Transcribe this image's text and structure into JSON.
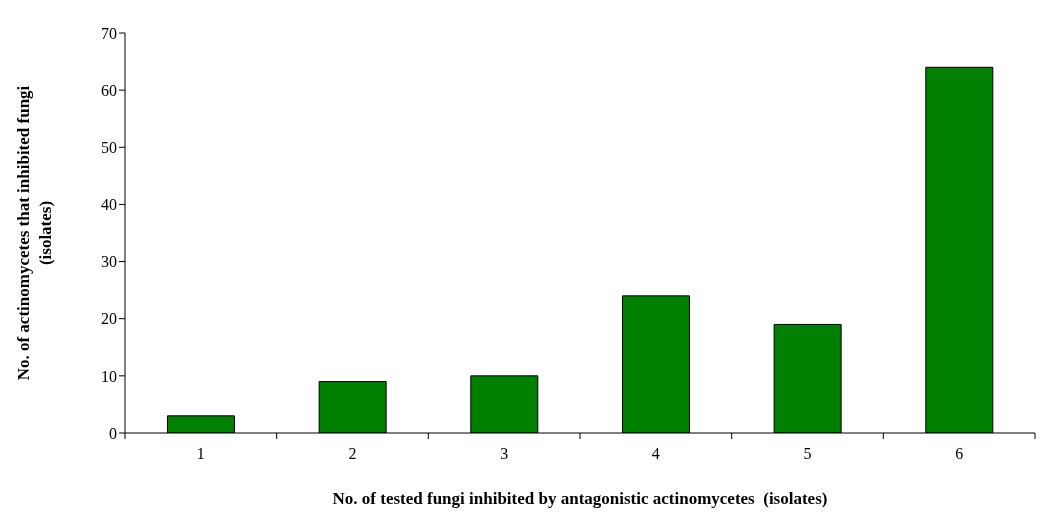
{
  "chart_data": {
    "type": "bar",
    "xlabel": "No. of tested fungi inhibited by antagonistic actinomycetes  (isolates)",
    "ylabel": "No. of actinomycetes that inhibited fungi (isolates)",
    "categories": [
      "1",
      "2",
      "3",
      "4",
      "5",
      "6"
    ],
    "values": [
      3,
      9,
      10,
      24,
      19,
      64
    ],
    "color": "#008000",
    "ylim": [
      0,
      70
    ],
    "yticks": [
      0,
      10,
      20,
      30,
      40,
      50,
      60,
      70
    ],
    "grid": false
  }
}
